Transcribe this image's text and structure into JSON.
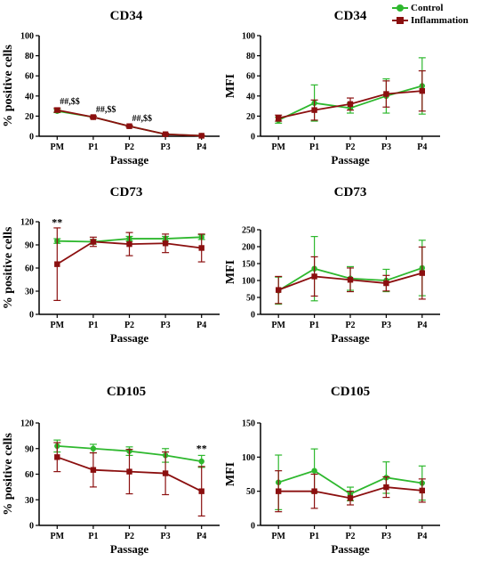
{
  "colors": {
    "control": "#2eb82e",
    "inflammation": "#8b0f0f"
  },
  "legend": {
    "control": "Control",
    "inflammation": "Inflammation"
  },
  "chart_data": [
    {
      "type": "line",
      "title": "CD34",
      "xlabel": "Passage",
      "ylabel": "% positive cells",
      "categories": [
        "PM",
        "P1",
        "P2",
        "P3",
        "P4"
      ],
      "ylim": [
        0,
        100
      ],
      "yticks": [
        0,
        20,
        40,
        60,
        80,
        100
      ],
      "series": [
        {
          "name": "Control",
          "values": [
            25,
            19,
            10,
            2,
            0.5
          ],
          "errors": [
            1.5,
            1,
            0.8,
            0.8,
            0.3
          ]
        },
        {
          "name": "Inflammation",
          "values": [
            26,
            19,
            10,
            2,
            0.5
          ],
          "errors": [
            2,
            1,
            0.8,
            0.8,
            0.3
          ]
        }
      ],
      "annotations": [
        {
          "x": "PM",
          "text": "##,$$",
          "y": 32
        },
        {
          "x": "P1",
          "text": "##,$$",
          "y": 24
        },
        {
          "x": "P2",
          "text": "##,$$",
          "y": 15
        }
      ]
    },
    {
      "type": "line",
      "title": "CD34",
      "xlabel": "Passage",
      "ylabel": "MFI",
      "categories": [
        "PM",
        "P1",
        "P2",
        "P3",
        "P4"
      ],
      "ylim": [
        0,
        100
      ],
      "yticks": [
        0,
        20,
        40,
        60,
        80,
        100
      ],
      "series": [
        {
          "name": "Control",
          "values": [
            16,
            33,
            28,
            40,
            50
          ],
          "errors": [
            3,
            18,
            5,
            17,
            28
          ]
        },
        {
          "name": "Inflammation",
          "values": [
            18,
            26,
            32,
            42,
            45
          ],
          "errors": [
            3,
            10,
            6,
            13,
            20
          ]
        }
      ],
      "annotations": []
    },
    {
      "type": "line",
      "title": "CD73",
      "xlabel": "Passage",
      "ylabel": "% positive cells",
      "categories": [
        "PM",
        "P1",
        "P2",
        "P3",
        "P4"
      ],
      "ylim": [
        0,
        120
      ],
      "yticks": [
        0,
        30,
        60,
        90,
        120
      ],
      "series": [
        {
          "name": "Control",
          "values": [
            95,
            94,
            98,
            98,
            100
          ],
          "errors": [
            3,
            3,
            3,
            3,
            3
          ]
        },
        {
          "name": "Inflammation",
          "values": [
            65,
            94,
            91,
            92,
            86
          ],
          "errors": [
            47,
            6,
            15,
            12,
            18
          ]
        }
      ],
      "annotations": [
        {
          "x": "PM",
          "text": "**",
          "y": 115
        }
      ]
    },
    {
      "type": "line",
      "title": "CD73",
      "xlabel": "Passage",
      "ylabel": "MFI",
      "categories": [
        "PM",
        "P1",
        "P2",
        "P3",
        "P4"
      ],
      "ylim": [
        0,
        250
      ],
      "yticks": [
        0,
        50,
        100,
        150,
        200,
        250
      ],
      "series": [
        {
          "name": "Control",
          "values": [
            70,
            135,
            106,
            100,
            137
          ],
          "errors": [
            40,
            95,
            35,
            33,
            82
          ]
        },
        {
          "name": "Inflammation",
          "values": [
            72,
            112,
            102,
            92,
            122
          ],
          "errors": [
            40,
            58,
            35,
            23,
            77
          ]
        }
      ],
      "annotations": []
    },
    {
      "type": "line",
      "title": "CD105",
      "xlabel": "Passage",
      "ylabel": "% positive cells",
      "categories": [
        "PM",
        "P1",
        "P2",
        "P3",
        "P4"
      ],
      "ylim": [
        0,
        120
      ],
      "yticks": [
        0,
        30,
        60,
        90,
        120
      ],
      "series": [
        {
          "name": "Control",
          "values": [
            93,
            90,
            87,
            82,
            75
          ],
          "errors": [
            7,
            5,
            5,
            8,
            7
          ]
        },
        {
          "name": "Inflammation",
          "values": [
            80,
            65,
            63,
            61,
            40
          ],
          "errors": [
            17,
            20,
            26,
            25,
            29
          ]
        }
      ],
      "annotations": [
        {
          "x": "P4",
          "text": "**",
          "y": 86
        }
      ]
    },
    {
      "type": "line",
      "title": "CD105",
      "xlabel": "Passage",
      "ylabel": "MFI",
      "categories": [
        "PM",
        "P1",
        "P2",
        "P3",
        "P4"
      ],
      "ylim": [
        0,
        150
      ],
      "yticks": [
        0,
        50,
        100,
        150
      ],
      "series": [
        {
          "name": "Control",
          "values": [
            63,
            80,
            46,
            70,
            62
          ],
          "errors": [
            40,
            32,
            10,
            23,
            25
          ]
        },
        {
          "name": "Inflammation",
          "values": [
            50,
            50,
            40,
            56,
            51
          ],
          "errors": [
            30,
            25,
            10,
            15,
            17
          ]
        }
      ],
      "annotations": []
    }
  ]
}
